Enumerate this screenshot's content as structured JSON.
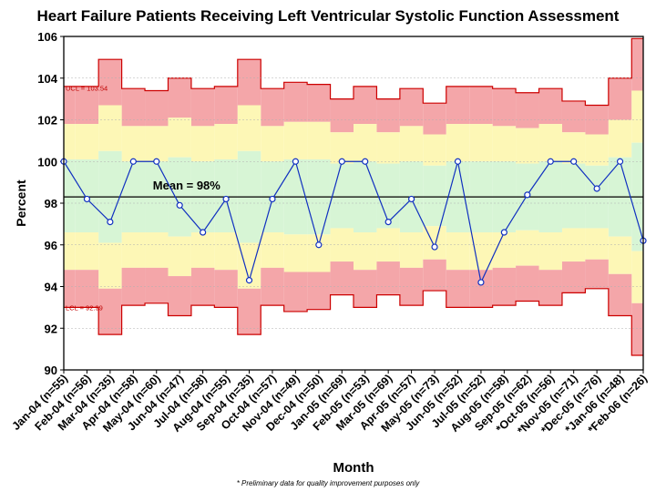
{
  "chart_data": {
    "type": "line",
    "title": "Heart Failure Patients Receiving Left Ventricular Systolic Function Assessment",
    "xlabel": "Month",
    "ylabel": "Percent",
    "ylim": [
      90,
      106
    ],
    "yticks": [
      "90",
      "92",
      "94",
      "96",
      "98",
      "100",
      "102",
      "104",
      "106"
    ],
    "grid": true,
    "categories": [
      "Jan-04 (n=55)",
      "Feb-04 (n=56)",
      "Mar-04 (n=35)",
      "Apr-04 (n=58)",
      "May-04 (n=60)",
      "Jun-04 (n=47)",
      "Jul-04 (n=58)",
      "Aug-04 (n=55)",
      "Sep-04 (n=35)",
      "Oct-04 (n=57)",
      "Nov-04 (n=49)",
      "Dec-04 (n=50)",
      "Jan-05 (n=69)",
      "Feb-05 (n=53)",
      "Mar-05 (n=69)",
      "Apr-05 (n=57)",
      "May-05 (n=73)",
      "Jun-05 (n=52)",
      "Jul-05 (n=52)",
      "Aug-05 (n=58)",
      "Sep-05 (n=62)",
      "*Oct-05 (n=56)",
      "*Nov-05 (n=71)",
      "*Dec-05 (n=76)",
      "*Jan-06 (n=48)",
      "*Feb-06 (n=26)"
    ],
    "series": [
      {
        "name": "Percent",
        "values": [
          100,
          98.2,
          97.1,
          100,
          100,
          97.9,
          96.6,
          98.2,
          94.3,
          98.2,
          100,
          96.0,
          100,
          100,
          97.1,
          98.2,
          95.9,
          100,
          94.2,
          96.6,
          98.4,
          100,
          100,
          98.7,
          100,
          96.2
        ]
      }
    ],
    "bands": {
      "ucl": [
        103.6,
        103.6,
        104.9,
        103.5,
        103.4,
        104.0,
        103.5,
        103.6,
        104.9,
        103.5,
        103.8,
        103.7,
        103.0,
        103.6,
        103.0,
        103.5,
        102.8,
        103.6,
        103.6,
        103.5,
        103.3,
        103.5,
        102.9,
        102.7,
        104.0,
        105.9
      ],
      "u2": [
        101.8,
        101.8,
        102.7,
        101.7,
        101.7,
        102.1,
        101.7,
        101.8,
        102.7,
        101.7,
        101.9,
        101.9,
        101.4,
        101.8,
        101.4,
        101.7,
        101.3,
        101.8,
        101.8,
        101.7,
        101.6,
        101.8,
        101.4,
        101.3,
        102.0,
        103.4
      ],
      "u1": [
        100.1,
        100.1,
        100.5,
        100.0,
        100.0,
        100.2,
        100.0,
        100.1,
        100.5,
        100.0,
        100.1,
        100.1,
        99.9,
        100.0,
        99.9,
        100.0,
        99.8,
        100.0,
        100.0,
        100.0,
        99.9,
        100.0,
        99.9,
        99.8,
        100.2,
        100.9
      ],
      "l1": [
        96.6,
        96.6,
        96.1,
        96.6,
        96.6,
        96.4,
        96.6,
        96.6,
        96.1,
        96.6,
        96.5,
        96.5,
        96.8,
        96.6,
        96.8,
        96.6,
        96.9,
        96.6,
        96.6,
        96.6,
        96.7,
        96.6,
        96.8,
        96.8,
        96.4,
        95.7
      ],
      "l2": [
        94.8,
        94.8,
        93.9,
        94.9,
        94.9,
        94.5,
        94.9,
        94.8,
        93.9,
        94.9,
        94.7,
        94.7,
        95.2,
        94.8,
        95.2,
        94.9,
        95.3,
        94.8,
        94.8,
        94.9,
        95.0,
        94.8,
        95.2,
        95.3,
        94.6,
        93.2
      ],
      "lcl": [
        93.0,
        93.0,
        91.7,
        93.1,
        93.2,
        92.6,
        93.1,
        93.0,
        91.7,
        93.1,
        92.8,
        92.9,
        93.6,
        93.0,
        93.6,
        93.1,
        93.8,
        93.0,
        93.0,
        93.1,
        93.3,
        93.1,
        93.7,
        93.9,
        92.6,
        90.7
      ]
    },
    "mean": 98.3,
    "annotations": {
      "mean_label": "Mean = 98%",
      "ucl_label": "UCL = 103.54",
      "lcl_label": "LCL = 92.99",
      "ucl_value": 103.54,
      "lcl_value": 92.99
    },
    "colors": {
      "red_band": "#f4a6a9",
      "yellow_band": "#fdf7b6",
      "green_band": "#d7f5d5",
      "band_edge": "#cc0000",
      "line": "#1030c0",
      "marker": "#ffffff",
      "mean_line": "#000000"
    }
  },
  "footnote": "* Preliminary data for quality improvement purposes only"
}
